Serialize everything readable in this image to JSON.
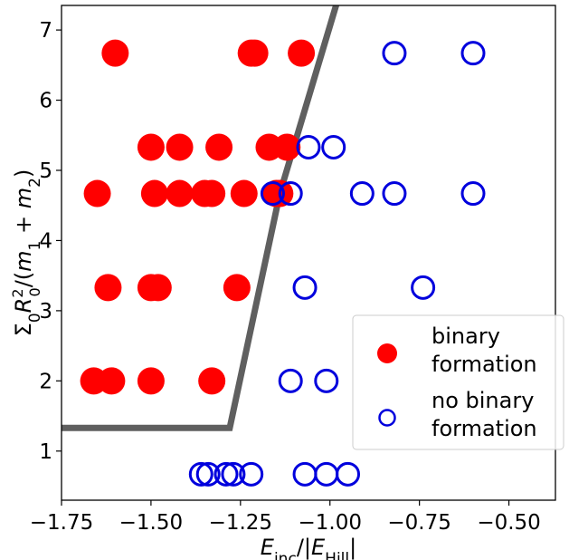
{
  "chart_data": {
    "type": "scatter",
    "xlabel": "E_inc/|E_Hill|",
    "ylabel": "Σ0 R0²/(m1 + m2)",
    "xlim": [
      -1.75,
      -0.37
    ],
    "ylim": [
      0.3,
      7.35
    ],
    "xticks": [
      "−1.75",
      "−1.50",
      "−1.25",
      "−1.00",
      "−0.75",
      "−0.50"
    ],
    "xtick_values": [
      -1.75,
      -1.5,
      -1.25,
      -1.0,
      -0.75,
      -0.5
    ],
    "yticks": [
      "1",
      "2",
      "3",
      "4",
      "5",
      "6",
      "7"
    ],
    "ytick_values": [
      1,
      2,
      3,
      4,
      5,
      6,
      7
    ],
    "grid": false,
    "legend_position": "lower-right",
    "boundary_line": {
      "color": "#5f5f5f",
      "x": [
        -1.75,
        -1.28,
        -1.14,
        -0.98
      ],
      "y": [
        1.33,
        1.33,
        4.67,
        7.4
      ]
    },
    "series": [
      {
        "name": "binary formation",
        "marker": "filled-circle",
        "color": "#ff0000",
        "x": [
          -1.6,
          -1.22,
          -1.21,
          -1.08,
          -1.5,
          -1.42,
          -1.31,
          -1.17,
          -1.12,
          -1.65,
          -1.49,
          -1.42,
          -1.35,
          -1.33,
          -1.24,
          -1.15,
          -1.14,
          -1.62,
          -1.5,
          -1.48,
          -1.26,
          -1.66,
          -1.61,
          -1.5,
          -1.33
        ],
        "y": [
          6.67,
          6.67,
          6.67,
          6.67,
          5.33,
          5.33,
          5.33,
          5.33,
          5.33,
          4.67,
          4.67,
          4.67,
          4.67,
          4.67,
          4.67,
          4.67,
          4.67,
          3.33,
          3.33,
          3.33,
          3.33,
          2.0,
          2.0,
          2.0,
          2.0
        ]
      },
      {
        "name": "no binary formation",
        "marker": "open-circle",
        "color": "#0000dd",
        "x": [
          -0.82,
          -0.6,
          -1.06,
          -0.99,
          -1.16,
          -1.11,
          -0.91,
          -0.82,
          -0.6,
          -1.07,
          -0.74,
          -1.11,
          -1.01,
          -1.36,
          -1.34,
          -1.29,
          -1.27,
          -1.22,
          -1.07,
          -1.01,
          -0.95
        ],
        "y": [
          6.67,
          6.67,
          5.33,
          5.33,
          4.67,
          4.67,
          4.67,
          4.67,
          4.67,
          3.33,
          3.33,
          2.0,
          2.0,
          0.67,
          0.67,
          0.67,
          0.67,
          0.67,
          0.67,
          0.67,
          0.67
        ]
      }
    ],
    "legend": {
      "entries": [
        {
          "line1": "binary",
          "line2": "formation"
        },
        {
          "line1": "no binary",
          "line2": "formation"
        }
      ]
    }
  }
}
